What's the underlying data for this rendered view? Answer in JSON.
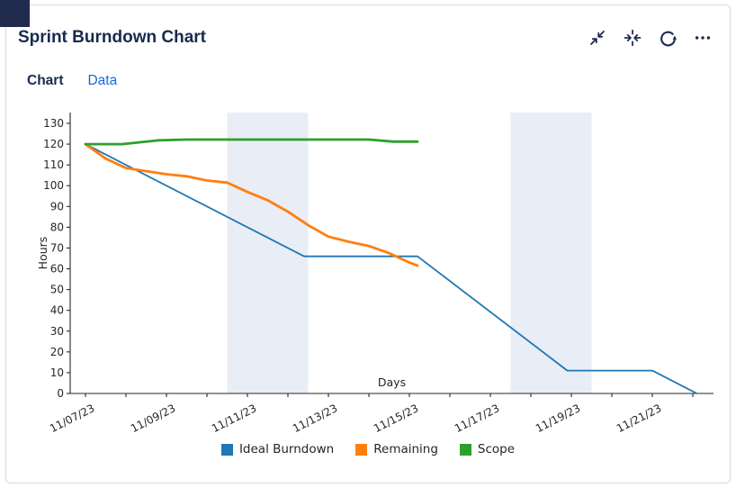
{
  "header": {
    "title": "Sprint Burndown Chart",
    "actions": [
      {
        "name": "minimize",
        "icon": "collapse-diagonal-icon"
      },
      {
        "name": "collapse",
        "icon": "collapse-horizontal-icon"
      },
      {
        "name": "refresh",
        "icon": "refresh-icon"
      },
      {
        "name": "more-options",
        "icon": "ellipsis-icon"
      }
    ]
  },
  "tabs": [
    {
      "label": "Chart",
      "active": true
    },
    {
      "label": "Data",
      "active": false
    }
  ],
  "colors": {
    "accent_blue": "#1868db",
    "navy_text": "#172b4d",
    "corner_overlay": "#1f2a4d",
    "card_border": "#d5d9e0",
    "weekend_band": "#e9edf6",
    "ideal": "#1f77b4",
    "remaining": "#ff7f0e",
    "scope": "#2ca02c"
  },
  "chart_data": {
    "type": "line",
    "title": "",
    "xlabel": "Days",
    "ylabel": "Hours",
    "x_day_zero": "11/07/23",
    "x_tick_labels": [
      "11/07/23",
      "11/09/23",
      "11/11/23",
      "11/13/23",
      "11/15/23",
      "11/17/23",
      "11/19/23",
      "11/21/23"
    ],
    "x_tick_days": [
      0,
      2,
      4,
      6,
      8,
      10,
      12,
      14
    ],
    "x_minor_tick_days": [
      1,
      3,
      5,
      7,
      9,
      11,
      13,
      15
    ],
    "xlim_days": [
      -0.38,
      15.5
    ],
    "y_ticks": [
      0,
      10,
      20,
      30,
      40,
      50,
      60,
      70,
      80,
      90,
      100,
      110,
      120,
      130
    ],
    "ylim": [
      0,
      135
    ],
    "grid": false,
    "legend_position": "bottom-center",
    "weekend_bands": [
      {
        "from_day": 3.5,
        "to_day": 5.5,
        "dates": [
          "11/11/23",
          "11/12/23"
        ]
      },
      {
        "from_day": 10.5,
        "to_day": 12.5,
        "dates": [
          "11/18/23",
          "11/19/23"
        ]
      }
    ],
    "series": [
      {
        "name": "Ideal Burndown",
        "color": "#1f77b4",
        "line_width": 1.8,
        "points_day_value": [
          [
            0,
            120
          ],
          [
            5.4,
            66
          ],
          [
            8.2,
            66
          ],
          [
            11.9,
            11
          ],
          [
            14,
            11
          ],
          [
            15.1,
            0
          ]
        ]
      },
      {
        "name": "Remaining",
        "color": "#ff7f0e",
        "line_width": 2.8,
        "points_day_value": [
          [
            0,
            120
          ],
          [
            0.5,
            113
          ],
          [
            1,
            108.5
          ],
          [
            1.5,
            107
          ],
          [
            2,
            105.5
          ],
          [
            2.5,
            104.5
          ],
          [
            3,
            102.5
          ],
          [
            3.5,
            101.5
          ],
          [
            4,
            97
          ],
          [
            4.5,
            93
          ],
          [
            5,
            87.5
          ],
          [
            5.5,
            81
          ],
          [
            6,
            75.5
          ],
          [
            6.5,
            73
          ],
          [
            7,
            71
          ],
          [
            7.5,
            67.5
          ],
          [
            8,
            63
          ],
          [
            8.2,
            61.5
          ]
        ]
      },
      {
        "name": "Scope",
        "color": "#2ca02c",
        "line_width": 2.8,
        "points_day_value": [
          [
            0,
            120
          ],
          [
            0.9,
            120
          ],
          [
            1.8,
            121.8
          ],
          [
            2.5,
            122.2
          ],
          [
            7,
            122.2
          ],
          [
            7.6,
            121.2
          ],
          [
            8.2,
            121.2
          ]
        ]
      }
    ]
  }
}
